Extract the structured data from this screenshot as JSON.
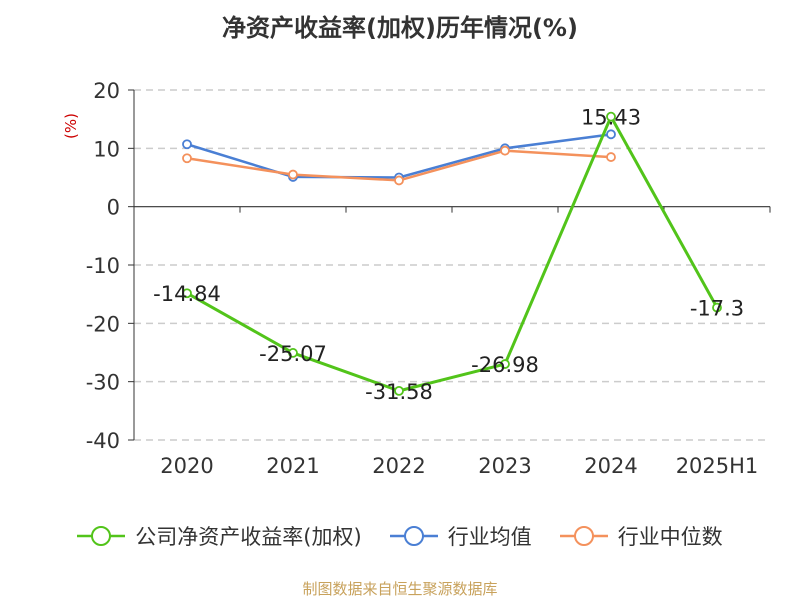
{
  "chart_data": {
    "type": "line",
    "title": "净资产收益率(加权)历年情况(%)",
    "ylabel": "(%)",
    "categories": [
      "2020",
      "2021",
      "2022",
      "2023",
      "2024",
      "2025H1"
    ],
    "ylim": [
      -40,
      20
    ],
    "yticks": [
      20,
      10,
      0,
      -10,
      -20,
      -30,
      -40
    ],
    "grid": true,
    "legend_position": "bottom",
    "series": [
      {
        "name": "公司净资产收益率(加权)",
        "color": "#52c41a",
        "values": [
          -14.84,
          -25.07,
          -31.58,
          -26.98,
          15.43,
          -17.3
        ],
        "labels": [
          "-14.84",
          "-25.07",
          "-31.58",
          "-26.98",
          "15.43",
          "-17.3"
        ]
      },
      {
        "name": "行业均值",
        "color": "#4a7fd4",
        "values": [
          10.7,
          5.1,
          5.0,
          10.0,
          12.4,
          null
        ]
      },
      {
        "name": "行业中位数",
        "color": "#f4915c",
        "values": [
          8.3,
          5.5,
          4.5,
          9.6,
          8.5,
          null
        ]
      }
    ]
  },
  "source": "制图数据来自恒生聚源数据库",
  "colors": {
    "ylabel": "#cc0000",
    "grid": "#cccccc",
    "axis": "#333333"
  }
}
